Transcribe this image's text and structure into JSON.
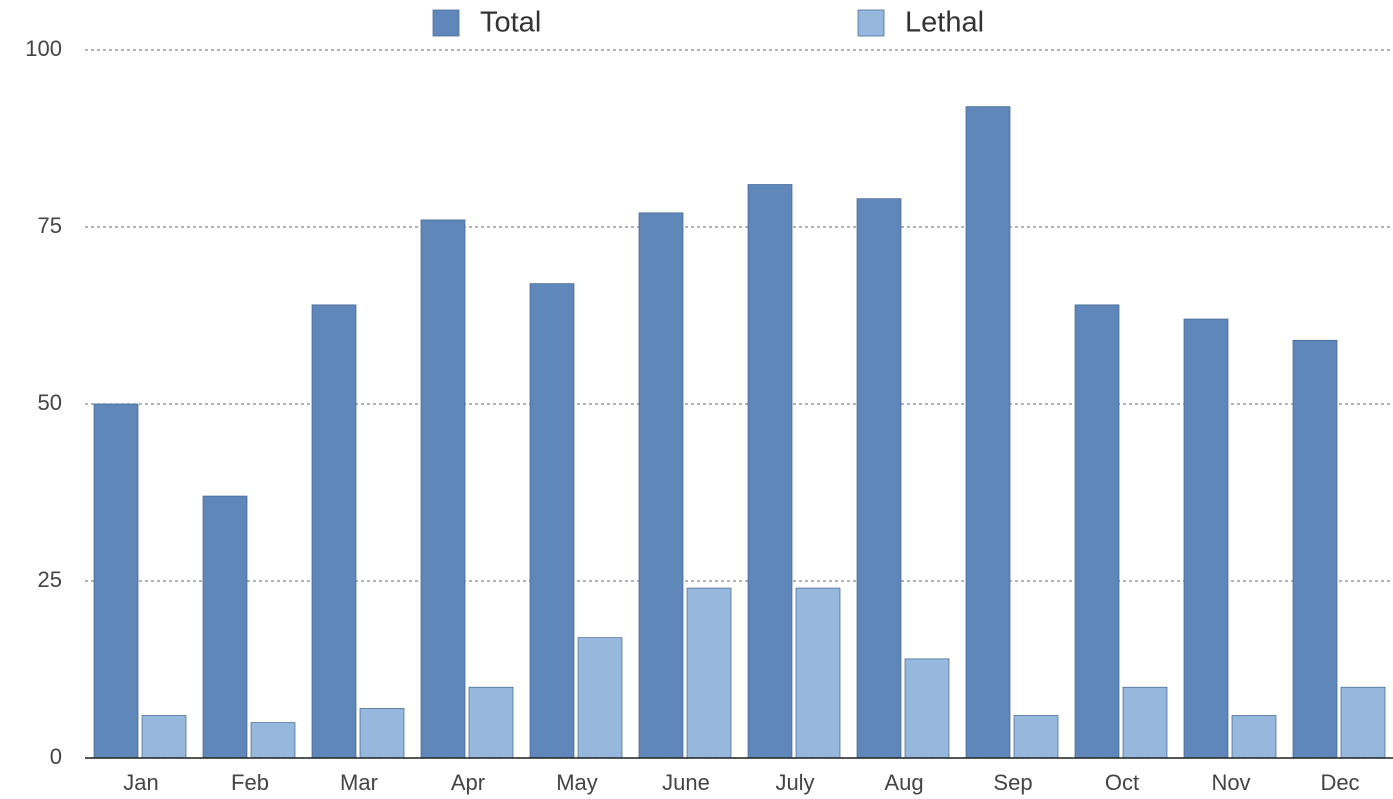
{
  "chart_data": {
    "type": "bar",
    "categories": [
      "Jan",
      "Feb",
      "Mar",
      "Apr",
      "May",
      "June",
      "July",
      "Aug",
      "Sep",
      "Oct",
      "Nov",
      "Dec"
    ],
    "series": [
      {
        "name": "Total",
        "color": "#5f87ba",
        "values": [
          50,
          37,
          64,
          76,
          67,
          77,
          81,
          79,
          92,
          64,
          62,
          59
        ]
      },
      {
        "name": "Lethal",
        "color": "#95b8dc",
        "values": [
          6,
          5,
          7,
          10,
          17,
          24,
          24,
          14,
          6,
          10,
          6,
          10
        ]
      }
    ],
    "ylim": [
      0,
      100
    ],
    "yticks": [
      0,
      25,
      50,
      75,
      100
    ],
    "grid": true,
    "legend": "top"
  }
}
